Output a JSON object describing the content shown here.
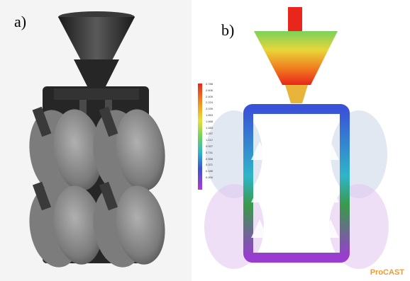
{
  "panels": {
    "a": {
      "label": "a)"
    },
    "b": {
      "label": "b)"
    }
  },
  "legend": {
    "ticks": [
      "2.788",
      "2.606",
      "2.409",
      "2.224",
      "2.039",
      "1.853",
      "1.668",
      "1.483",
      "1.297",
      "1.112",
      "0.927",
      "0.741",
      "0.556",
      "0.371",
      "0.185",
      "0.000"
    ]
  },
  "brand": {
    "text": "ProCAST"
  },
  "colors": {
    "casting_dark": "#2f2f2f",
    "casting_light": "#8c8c8c",
    "flow_red": "#e8261c",
    "flow_green": "#6fd35a",
    "flow_blue": "#3a52d8",
    "flow_purple": "#9a3bd2",
    "brand_orange": "#f29a2e"
  }
}
